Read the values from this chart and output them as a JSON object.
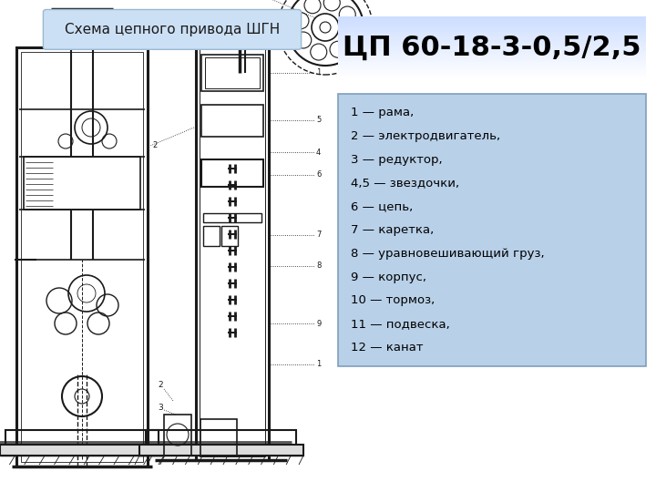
{
  "title_box_text": "Схема цепного привода ШГН",
  "model_text": "ЦП 60-18-3-0,5/2,5",
  "legend_lines": [
    "1 — рама,",
    "2 — электродвигатель,",
    "3 — редуктор,",
    "4,5 — звездочки,",
    "6 — цепь,",
    "7 — каретка,",
    "8 — уравновешивающий груз,",
    "9 — корпус,",
    "10 — тормоз,",
    "11 — подвеска,",
    "12 — канат"
  ],
  "bg_color": "#ffffff",
  "title_box_bg": "#cce0f5",
  "title_box_border": "#8eacc8",
  "model_box_bg": "#ddeeff",
  "model_text_color": "#000000",
  "legend_box_bg": "#b8d0e8",
  "legend_box_border": "#7f9fbb",
  "line_color": "#1a1a1a",
  "title_area": [
    0.07,
    0.905,
    0.455,
    0.975
  ],
  "model_area": [
    0.515,
    0.84,
    0.985,
    0.965
  ],
  "legend_area": [
    0.515,
    0.255,
    0.985,
    0.81
  ]
}
